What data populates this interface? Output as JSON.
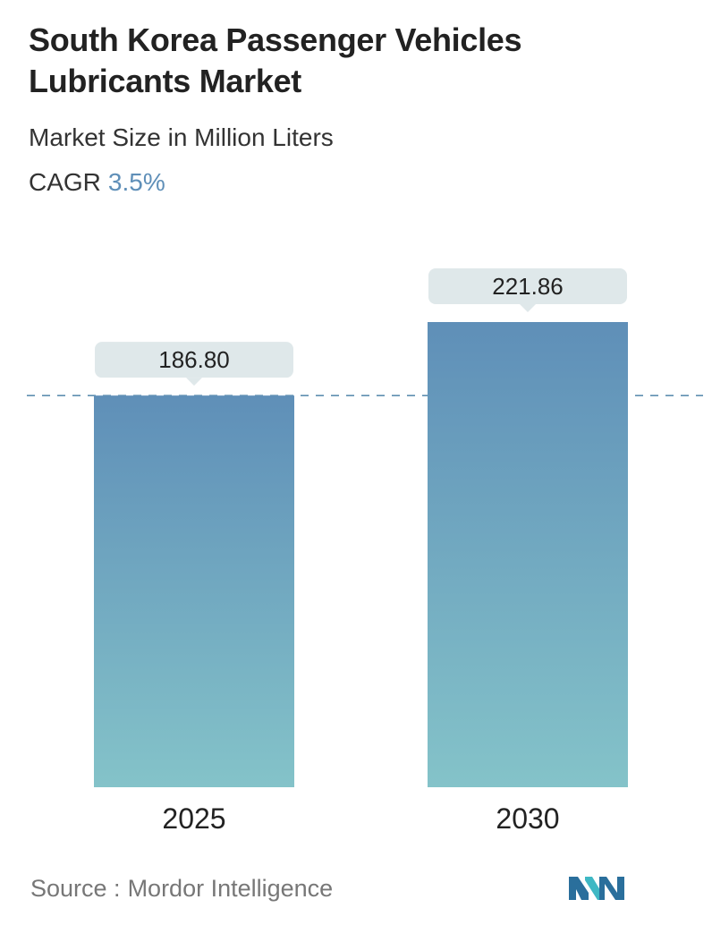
{
  "header": {
    "title": "South Korea Passenger Vehicles Lubricants Market",
    "subtitle": "Market Size in Million Liters",
    "cagr_label": "CAGR",
    "cagr_value": "3.5%"
  },
  "colors": {
    "bar_top": "#5f8fb8",
    "bar_bottom": "#84c3c9",
    "label_bg": "#dfe8ea",
    "dash_line": "#5f8fb0",
    "cagr_accent": "#5f8fb8"
  },
  "chart_data": {
    "type": "bar",
    "categories": [
      "2025",
      "2030"
    ],
    "values": [
      186.8,
      221.86
    ],
    "data_labels": [
      "186.80",
      "221.86"
    ],
    "title": "South Korea Passenger Vehicles Lubricants Market",
    "subtitle": "Market Size in Million Liters",
    "xlabel": "",
    "ylabel": "",
    "ylim": [
      0,
      221.86
    ],
    "grid": false,
    "legend": "none",
    "reference_line": 186.8
  },
  "footer": {
    "source_label": "Source :",
    "source_value": "Mordor Intelligence",
    "logo_icon": "mordor-intelligence-logo-icon"
  }
}
